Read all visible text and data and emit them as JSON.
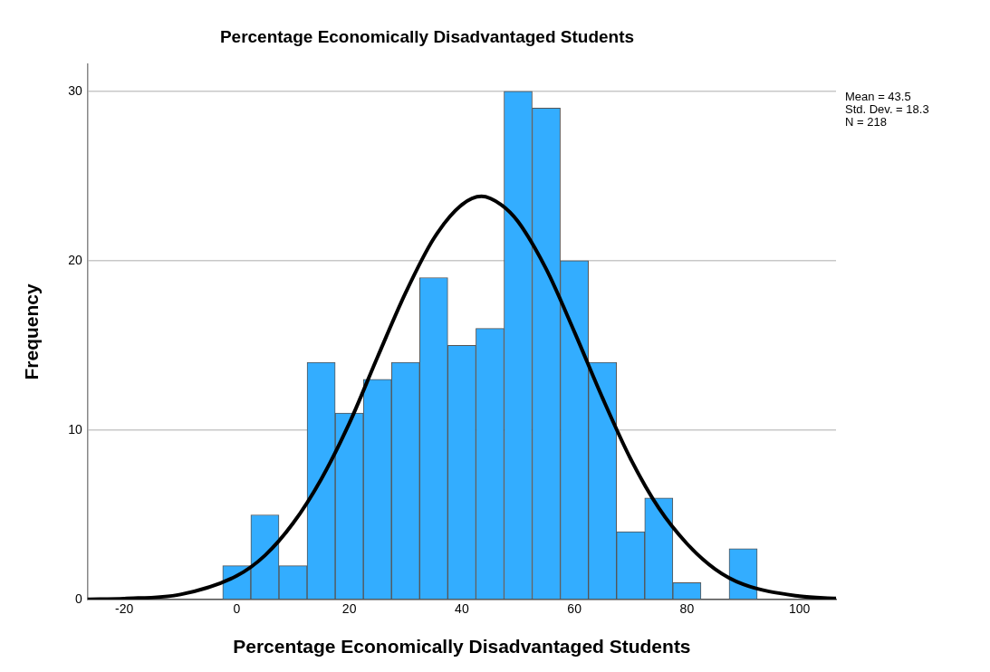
{
  "chart_data": {
    "type": "histogram",
    "title": "Percentage Economically Disadvantaged Students",
    "xlabel": "Percentage Economically Disadvantaged Students",
    "ylabel": "Frequency",
    "bins": [
      -2.5,
      2.5,
      7.5,
      12.5,
      17.5,
      22.5,
      27.5,
      32.5,
      37.5,
      42.5,
      47.5,
      52.5,
      57.5,
      62.5,
      67.5,
      72.5,
      77.5,
      82.5,
      87.5,
      92.5
    ],
    "values": [
      2,
      5,
      2,
      14,
      11,
      13,
      14,
      19,
      15,
      16,
      30,
      29,
      20,
      14,
      4,
      6,
      1,
      0,
      3
    ],
    "color": "#33adff",
    "series": [
      {
        "type": "line",
        "color": "#000000",
        "x": [
          -26.5,
          -20,
          -10,
          0,
          5,
          10,
          15,
          20,
          25,
          30,
          35,
          40,
          43.5,
          47,
          50,
          55,
          60,
          65,
          70,
          75,
          80,
          85,
          90,
          100,
          106.5
        ],
        "values": [
          0.02,
          0.06,
          0.3,
          1.4,
          2.6,
          4.5,
          7.1,
          10.4,
          14.3,
          18.1,
          21.3,
          23.3,
          23.8,
          23.3,
          22.3,
          19.5,
          15.8,
          11.9,
          8.3,
          5.4,
          3.3,
          1.8,
          0.9,
          0.2,
          0.06
        ]
      }
    ],
    "xlim": [
      -26.5,
      106.5
    ],
    "xticks": [
      -20,
      0,
      20,
      40,
      60,
      80,
      100
    ],
    "ylim": [
      0,
      31.6
    ],
    "yticks": [
      0,
      10,
      20,
      30
    ],
    "grid": "y",
    "legend": false,
    "marker": "none",
    "line_style": "solid",
    "annotations": [
      "Mean = 43.5",
      "Std. Dev. = 18.3",
      "N = 218"
    ]
  }
}
